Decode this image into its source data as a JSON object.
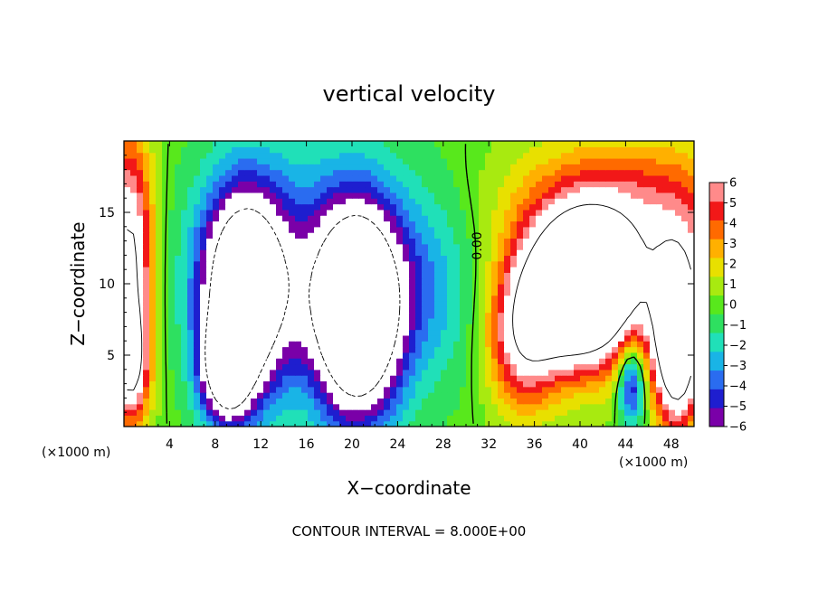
{
  "chart_data": {
    "type": "heatmap",
    "title": "vertical velocity",
    "xlabel": "X−coordinate",
    "ylabel": "Z−coordinate",
    "x_unit_left": "(×1000 m)",
    "x_unit_right": "(×1000 m)",
    "xlim": [
      0,
      50
    ],
    "ylim": [
      0,
      20
    ],
    "x_ticks": [
      4,
      8,
      12,
      16,
      20,
      24,
      28,
      32,
      36,
      40,
      44,
      48
    ],
    "y_ticks": [
      5,
      10,
      15
    ],
    "colorbar": {
      "range": [
        -6,
        6
      ],
      "ticks": [
        6,
        5,
        4,
        3,
        2,
        1,
        0,
        -1,
        -2,
        -3,
        -4,
        -5,
        -6
      ],
      "tick_labels": [
        "6",
        "5",
        "4",
        "3",
        "2",
        "1",
        "0",
        "−1",
        "−2",
        "−3",
        "−4",
        "−5",
        "−6"
      ],
      "colors": [
        "#7a00a8",
        "#1e1ecf",
        "#2a6cf0",
        "#19b4e6",
        "#20e0b8",
        "#2ee060",
        "#58e81c",
        "#a8ea10",
        "#e8e000",
        "#ffb000",
        "#ff6a00",
        "#f21818",
        "#ff8a8a"
      ]
    },
    "contour_label": "0.00",
    "annotation": "CONTOUR INTERVAL = 8.000E+00",
    "features": [
      {
        "x": 10.5,
        "z": 9.5,
        "sx": 2.6,
        "sz": 5.0,
        "amp": -12
      },
      {
        "x": 9.0,
        "z": 4.0,
        "sx": 1.5,
        "sz": 2.5,
        "amp": -9
      },
      {
        "x": 20.5,
        "z": 8.0,
        "sx": 2.6,
        "sz": 5.0,
        "amp": -14
      },
      {
        "x": 16.0,
        "z": 11.0,
        "sx": 6.0,
        "sz": 6.0,
        "amp": -3.5
      },
      {
        "x": 27.0,
        "z": 10.0,
        "sx": 3.5,
        "sz": 5.0,
        "amp": -2.5
      },
      {
        "x": 40.0,
        "z": 9.5,
        "sx": 3.2,
        "sz": 3.5,
        "amp": 14
      },
      {
        "x": 44.0,
        "z": 12.0,
        "sx": 7.0,
        "sz": 4.5,
        "amp": 5
      },
      {
        "x": 35.0,
        "z": 6.0,
        "sx": 2.2,
        "sz": 3.5,
        "amp": 6
      },
      {
        "x": 48.5,
        "z": 6.0,
        "sx": 1.4,
        "sz": 4.0,
        "amp": 13
      },
      {
        "x": 44.5,
        "z": 3.0,
        "sx": 0.8,
        "sz": 2.0,
        "amp": -6
      },
      {
        "x": 0.5,
        "z": 11.0,
        "sx": 1.4,
        "sz": 6.5,
        "amp": 9
      },
      {
        "x": 0.6,
        "z": 4.5,
        "sx": 1.0,
        "sz": 2.5,
        "amp": 6
      },
      {
        "x": 45.0,
        "z": 16.5,
        "sx": 8.0,
        "sz": 3.0,
        "amp": 2
      }
    ]
  }
}
